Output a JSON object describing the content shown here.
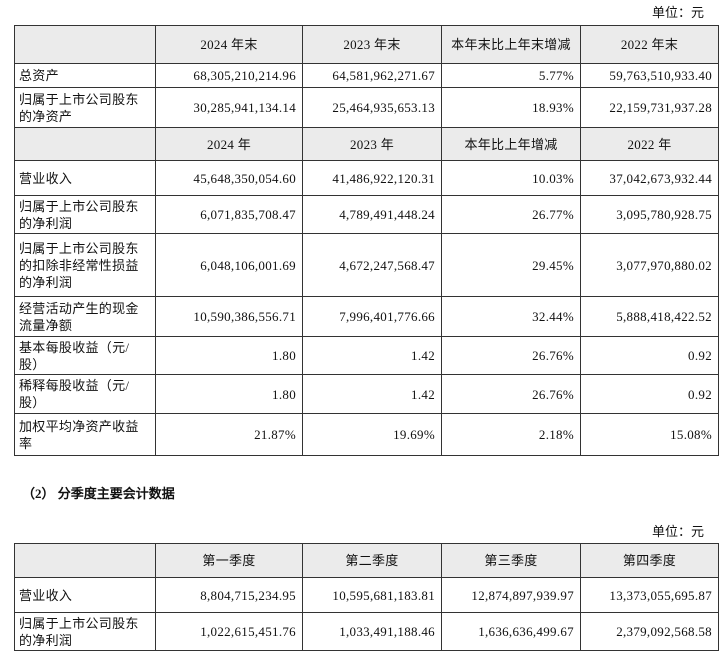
{
  "unit_top": "单位：元",
  "table1": {
    "header1": [
      "2024 年末",
      "2023 年末",
      "本年末比上年末增减",
      "2022 年末"
    ],
    "rows1": [
      [
        "总资产",
        "68,305,210,214.96",
        "64,581,962,271.67",
        "5.77%",
        "59,763,510,933.40"
      ],
      [
        "归属于上市公司股东的净资产",
        "30,285,941,134.14",
        "25,464,935,653.13",
        "18.93%",
        "22,159,731,937.28"
      ]
    ],
    "header2": [
      "2024 年",
      "2023 年",
      "本年比上年增减",
      "2022 年"
    ],
    "rows2": [
      [
        "营业收入",
        "45,648,350,054.60",
        "41,486,922,120.31",
        "10.03%",
        "37,042,673,932.44"
      ],
      [
        "归属于上市公司股东的净利润",
        "6,071,835,708.47",
        "4,789,491,448.24",
        "26.77%",
        "3,095,780,928.75"
      ],
      [
        "归属于上市公司股东的扣除非经常性损益的净利润",
        "6,048,106,001.69",
        "4,672,247,568.47",
        "29.45%",
        "3,077,970,880.02"
      ],
      [
        "经营活动产生的现金流量净额",
        "10,590,386,556.71",
        "7,996,401,776.66",
        "32.44%",
        "5,888,418,422.52"
      ],
      [
        "基本每股收益（元/股）",
        "1.80",
        "1.42",
        "26.76%",
        "0.92"
      ],
      [
        "稀释每股收益（元/股）",
        "1.80",
        "1.42",
        "26.76%",
        "0.92"
      ],
      [
        "加权平均净资产收益率",
        "21.87%",
        "19.69%",
        "2.18%",
        "15.08%"
      ]
    ]
  },
  "section_title": "（2） 分季度主要会计数据",
  "unit_bottom": "单位：元",
  "table2": {
    "header": [
      "第一季度",
      "第二季度",
      "第三季度",
      "第四季度"
    ],
    "rows": [
      [
        "营业收入",
        "8,804,715,234.95",
        "10,595,681,183.81",
        "12,874,897,939.97",
        "13,373,055,695.87"
      ],
      [
        "归属于上市公司股东的净利润",
        "1,022,615,451.76",
        "1,033,491,188.46",
        "1,636,636,499.67",
        "2,379,092,568.58"
      ]
    ]
  }
}
